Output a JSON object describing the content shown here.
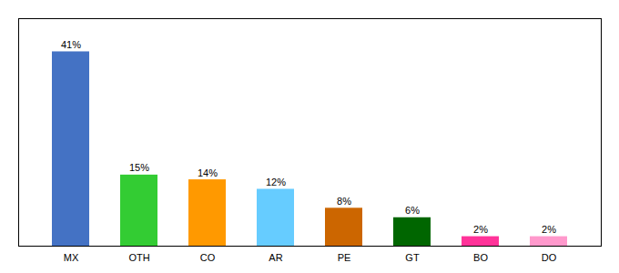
{
  "chart_data": {
    "type": "bar",
    "categories": [
      "MX",
      "OTH",
      "CO",
      "AR",
      "PE",
      "GT",
      "BO",
      "DO"
    ],
    "values": [
      41,
      15,
      14,
      12,
      8,
      6,
      2,
      2
    ],
    "value_labels": [
      "41%",
      "15%",
      "14%",
      "12%",
      "8%",
      "6%",
      "2%",
      "2%"
    ],
    "colors": [
      "#4472c4",
      "#33cc33",
      "#ff9900",
      "#66ccff",
      "#cc6600",
      "#006600",
      "#ff3399",
      "#ff99cc"
    ],
    "ylim": [
      0,
      48
    ],
    "data_labels": true,
    "tick_labels": "x",
    "grid": false
  }
}
